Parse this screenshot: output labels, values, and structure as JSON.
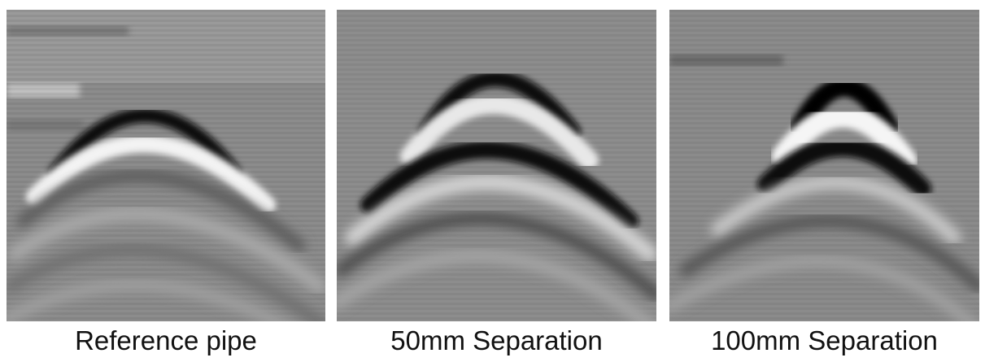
{
  "panels": [
    {
      "caption": "Reference pipe"
    },
    {
      "caption": "50mm Separation"
    },
    {
      "caption": "100mm Separation"
    }
  ],
  "colors": {
    "background": "#8a8a8a",
    "dark_band": "#0a0a0a",
    "light_band": "#f2f2f2"
  }
}
